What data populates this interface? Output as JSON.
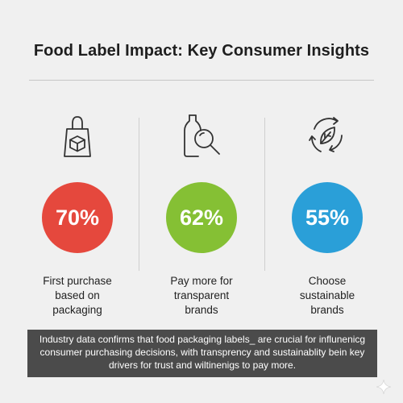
{
  "title": "Food Label Impact: Key Consumer Insights",
  "stats": [
    {
      "value": "70%",
      "label": "First purchase based on packaging",
      "color": "#e5483d",
      "icon": "shopping-bag-icon"
    },
    {
      "value": "62%",
      "label": "Pay more for transparent brands",
      "color": "#85c034",
      "icon": "bottle-magnifier-icon"
    },
    {
      "value": "55%",
      "label": "Choose sustainable brands",
      "color": "#2a9fd8",
      "icon": "recycle-leaf-icon"
    }
  ],
  "footer": {
    "text": "Industry data confirms that food packaging labels_ are crucial for influnenicg consumer purchasing decisions, with transprency and sustainablity bein key drivers for trust and wiltinenigs to pay more."
  }
}
